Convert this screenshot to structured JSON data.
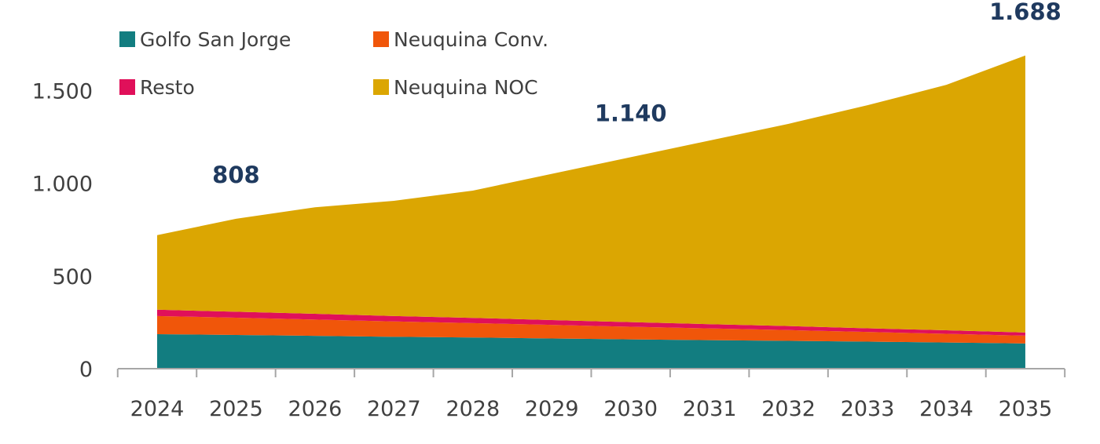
{
  "chart_data": {
    "type": "area",
    "stacked": true,
    "categories": [
      "2024",
      "2025",
      "2026",
      "2027",
      "2028",
      "2029",
      "2030",
      "2031",
      "2032",
      "2033",
      "2034",
      "2035"
    ],
    "series": [
      {
        "name": "Golfo San Jorge",
        "color": "#127d80",
        "values": [
          186,
          182,
          177,
          172,
          168,
          163,
          158,
          154,
          150,
          146,
          141,
          136
        ]
      },
      {
        "name": "Neuquina Conv.",
        "color": "#f0560a",
        "values": [
          98,
          93,
          88,
          83,
          78,
          73,
          68,
          63,
          58,
          52,
          47,
          42
        ]
      },
      {
        "name": "Resto",
        "color": "#e0105a",
        "values": [
          34,
          32,
          31,
          29,
          28,
          26,
          25,
          23,
          22,
          20,
          19,
          17
        ]
      },
      {
        "name": "Neuquina NOC",
        "color": "#dba602",
        "values": [
          402,
          501,
          574,
          621,
          686,
          788,
          889,
          990,
          1090,
          1202,
          1323,
          1493
        ]
      }
    ],
    "ylim": [
      0,
      1750
    ],
    "yticks": [
      0,
      500,
      1000,
      1500
    ],
    "ytick_labels": [
      "0",
      "500",
      "1.000",
      "1.500"
    ],
    "grid": false,
    "legend_placement": "top-left",
    "legend_order": [
      0,
      1,
      2,
      3
    ],
    "annotations": [
      {
        "category": "2025",
        "text": "808"
      },
      {
        "category": "2030",
        "text": "1.140"
      },
      {
        "category": "2035",
        "text": "1.688"
      }
    ],
    "annotation_color": "#1f3a5f",
    "title": "",
    "xlabel": "",
    "ylabel": ""
  }
}
